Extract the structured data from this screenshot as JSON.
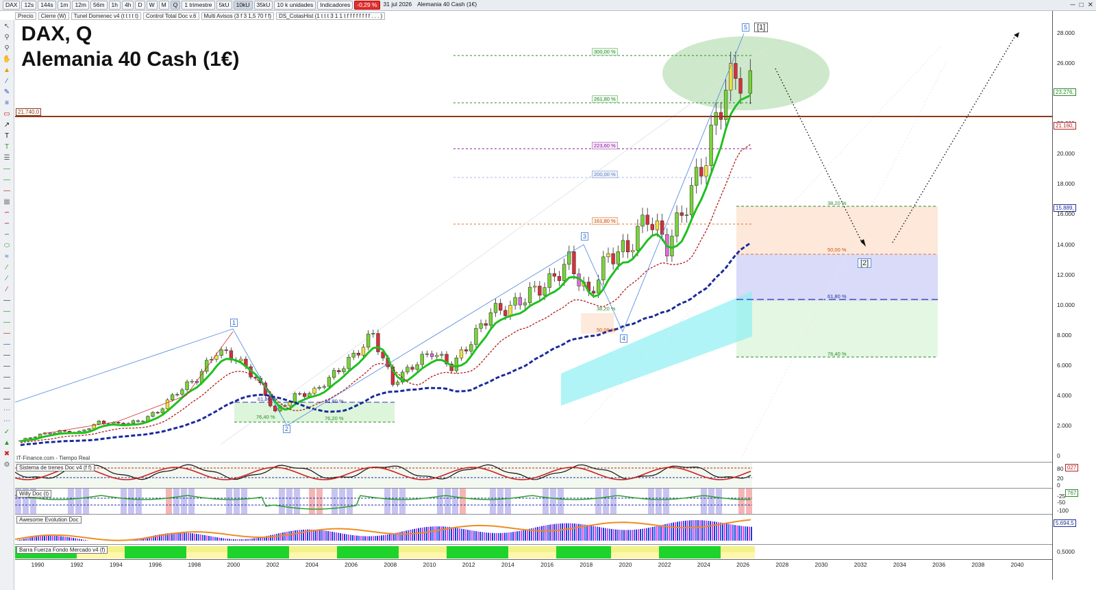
{
  "toolbar": {
    "symbol": "DAX",
    "intervals": [
      "12s",
      "144s",
      "1m",
      "12m",
      "56m",
      "1h",
      "4h",
      "D",
      "W",
      "M",
      "Q"
    ],
    "period": "1 trimestre",
    "units": [
      "5kU",
      "10kU",
      "35kU"
    ],
    "unit_mode": "10 k unidades",
    "indicators": "Indicadores",
    "change": "-0,29 %",
    "date": "31 jul 2026",
    "instrument": "Alemania 40 Cash (1€)"
  },
  "studies": [
    "Precio",
    "Cierre (W)",
    "Tunel Domenec v4 (t t t t t)",
    "Control Total Doc v.6",
    "Multi Avisos (3 f 3 1,5 70 f f)",
    "DS_CotasHist (1 t t t 3 1 1 t f f f f f f f f . . . )"
  ],
  "chart": {
    "title_line1": "DAX, Q",
    "title_line2": "Alemania 40 Cash (1€)",
    "feed": "IT-Finance.com - Tiempo Real"
  },
  "price_axis": {
    "labels": [
      "28.000",
      "26.000",
      "24.000",
      "22.000",
      "20.000",
      "18.000",
      "16.000",
      "14.000",
      "12.000",
      "10.000",
      "8.000",
      "6.000",
      "4.000",
      "2.000",
      "0"
    ],
    "tags": [
      {
        "text": "23.276,",
        "color": "#2a8a2a"
      },
      {
        "text": "21.160,",
        "color": "#b02020"
      },
      {
        "text": "15.889,",
        "color": "#203090"
      }
    ]
  },
  "level_tag": "21.740,0",
  "fib_labels": [
    "300,00 %",
    "261,80 %",
    "223,60 %",
    "200,00 %",
    "161,80 %",
    "38,20 %",
    "50,00 %",
    "61,80 %",
    "76,40 %",
    "38,20 %",
    "50,00 %",
    "61,80 %",
    "76,40 %",
    "61,80 %",
    "76,20 %"
  ],
  "wave_labels": [
    "1",
    "2",
    "3",
    "4",
    "5",
    "[1]",
    "[2]"
  ],
  "panels": [
    {
      "name": "Sistema de trenes Doc v4 (f f)",
      "scale": [
        "80",
        "20",
        "0"
      ],
      "value": "027"
    },
    {
      "name": "Willy Doc (t)",
      "scale": [
        "-25",
        "-50",
        "-100"
      ],
      "value": "767"
    },
    {
      "name": "Awesome Evolution Doc",
      "scale": [
        "5.694,5"
      ]
    },
    {
      "name": "Barra Fuerza Fondo Mercado v4 (f)",
      "scale": [
        "0,5000"
      ]
    }
  ],
  "years": [
    "1990",
    "1992",
    "1994",
    "1996",
    "1998",
    "2000",
    "2002",
    "2004",
    "2006",
    "2008",
    "2010",
    "2012",
    "2014",
    "2016",
    "2018",
    "2020",
    "2022",
    "2024",
    "2026",
    "2028",
    "2030",
    "2032",
    "2034",
    "2036",
    "2038",
    "2040"
  ],
  "chart_data": {
    "type": "candlestick",
    "title": "DAX, Q",
    "series_hint": "quarterly DAX closes (approx)",
    "x": [
      "1989",
      "1990",
      "1991",
      "1992",
      "1993",
      "1994",
      "1995",
      "1996",
      "1997",
      "1998",
      "1999",
      "2000",
      "2001",
      "2002",
      "2003",
      "2004",
      "2005",
      "2006",
      "2007",
      "2008",
      "2009",
      "2010",
      "2011",
      "2012",
      "2013",
      "2014",
      "2015",
      "2016",
      "2017",
      "2018",
      "2019",
      "2020",
      "2021",
      "2022",
      "2023",
      "2024",
      "2025",
      "2026"
    ],
    "values": [
      1000,
      1400,
      1600,
      1550,
      2200,
      2100,
      2250,
      2900,
      4250,
      5100,
      6950,
      6450,
      5150,
      2900,
      3950,
      4250,
      5400,
      6600,
      8050,
      4800,
      5950,
      6900,
      5900,
      7600,
      9550,
      9800,
      10750,
      11500,
      12900,
      10550,
      13250,
      13700,
      15900,
      13900,
      16750,
      19900,
      24500,
      25500
    ],
    "ylim": [
      0,
      28000
    ]
  }
}
